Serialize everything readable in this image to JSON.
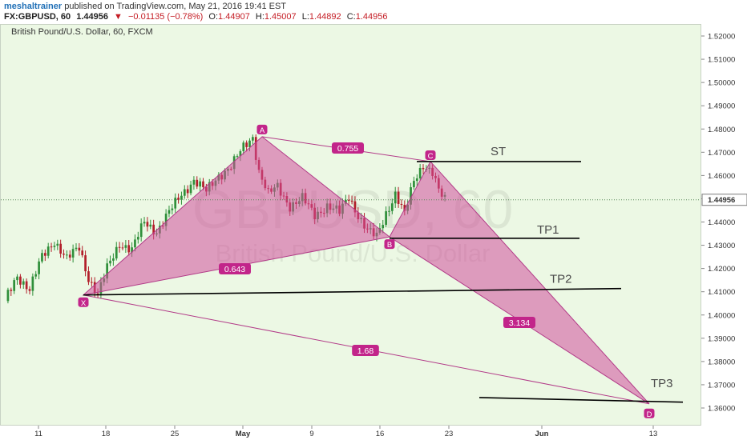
{
  "header": {
    "user": "meshaltrainer",
    "published": "published on TradingView.com, May 21, 2016 19:41 EST",
    "symbol": "FX:GBPUSD, 60",
    "last": "1.44956",
    "change_arrow": "▼",
    "change": "−0.01135 (−0.78%)",
    "o_label": "O:",
    "o": "1.44907",
    "h_label": "H:",
    "h": "1.45007",
    "l_label": "L:",
    "l": "1.44892",
    "c_label": "C:",
    "c": "1.44956"
  },
  "colors": {
    "plot_bg": "#ecf8e4",
    "up_candle": "#2f8f3a",
    "down_candle": "#b21e2a",
    "pattern_fill": "#d24f9c",
    "pattern_stroke": "#b23b88",
    "label_bg": "#c2258a",
    "level_line": "#000000"
  },
  "chart_data": {
    "type": "candlestick",
    "subtitle": "British Pound/U.S. Dollar, 60, FXCM",
    "watermark_line1": "GBPUSD, 60",
    "watermark_line2": "British Pound/U.S. Dollar",
    "ylim": [
      1.3552,
      1.5242
    ],
    "y_ticks": [
      "1.52000",
      "1.51000",
      "1.50000",
      "1.49000",
      "1.48000",
      "1.47000",
      "1.46000",
      "1.45000",
      "1.44000",
      "1.43000",
      "1.42000",
      "1.41000",
      "1.40000",
      "1.39000",
      "1.38000",
      "1.37000",
      "1.36000"
    ],
    "last_price_label": "1.44956",
    "x_ticks": [
      "11",
      "18",
      "25",
      "May",
      "9",
      "16",
      "23",
      "Jun",
      "13"
    ],
    "price_path": [
      {
        "t": 0,
        "p": 1.406
      },
      {
        "t": 4,
        "p": 1.417
      },
      {
        "t": 8,
        "p": 1.411
      },
      {
        "t": 12,
        "p": 1.425
      },
      {
        "t": 16,
        "p": 1.432
      },
      {
        "t": 20,
        "p": 1.424
      },
      {
        "t": 24,
        "p": 1.429
      },
      {
        "t": 27,
        "p": 1.416
      },
      {
        "t": 30,
        "p": 1.4086
      },
      {
        "t": 33,
        "p": 1.42
      },
      {
        "t": 37,
        "p": 1.431
      },
      {
        "t": 41,
        "p": 1.428
      },
      {
        "t": 45,
        "p": 1.44
      },
      {
        "t": 49,
        "p": 1.436
      },
      {
        "t": 53,
        "p": 1.444
      },
      {
        "t": 57,
        "p": 1.452
      },
      {
        "t": 61,
        "p": 1.458
      },
      {
        "t": 65,
        "p": 1.453
      },
      {
        "t": 69,
        "p": 1.46
      },
      {
        "t": 73,
        "p": 1.464
      },
      {
        "t": 77,
        "p": 1.472
      },
      {
        "t": 80,
        "p": 1.4767
      },
      {
        "t": 82,
        "p": 1.462
      },
      {
        "t": 85,
        "p": 1.452
      },
      {
        "t": 88,
        "p": 1.455
      },
      {
        "t": 92,
        "p": 1.447
      },
      {
        "t": 96,
        "p": 1.45
      },
      {
        "t": 100,
        "p": 1.443
      },
      {
        "t": 104,
        "p": 1.447
      },
      {
        "t": 108,
        "p": 1.444
      },
      {
        "t": 111,
        "p": 1.451
      },
      {
        "t": 114,
        "p": 1.443
      },
      {
        "t": 117,
        "p": 1.436
      },
      {
        "t": 120,
        "p": 1.4336
      },
      {
        "t": 123,
        "p": 1.444
      },
      {
        "t": 126,
        "p": 1.452
      },
      {
        "t": 129,
        "p": 1.443
      },
      {
        "t": 132,
        "p": 1.458
      },
      {
        "t": 135,
        "p": 1.465
      },
      {
        "t": 138,
        "p": 1.461
      },
      {
        "t": 140,
        "p": 1.453
      },
      {
        "t": 142,
        "p": 1.4496
      }
    ],
    "candle_count": 142,
    "pattern_points": [
      {
        "label": "X",
        "date": "Apr 14",
        "price": 1.4086
      },
      {
        "label": "A",
        "date": "May 3",
        "price": 1.4767
      },
      {
        "label": "B",
        "date": "May 17",
        "price": 1.4336
      },
      {
        "label": "C",
        "date": "May 20",
        "price": 1.466
      },
      {
        "label": "D",
        "date": "Jun 13",
        "price": 1.3618
      }
    ],
    "ratios": [
      "0.755",
      "0.643",
      "3.134",
      "1.68"
    ],
    "levels": [
      {
        "label": "ST",
        "price": 1.466
      },
      {
        "label": "TP1",
        "price": 1.433
      },
      {
        "label": "TP2",
        "price": 1.41
      },
      {
        "label": "TP3",
        "price": 1.363
      }
    ]
  }
}
